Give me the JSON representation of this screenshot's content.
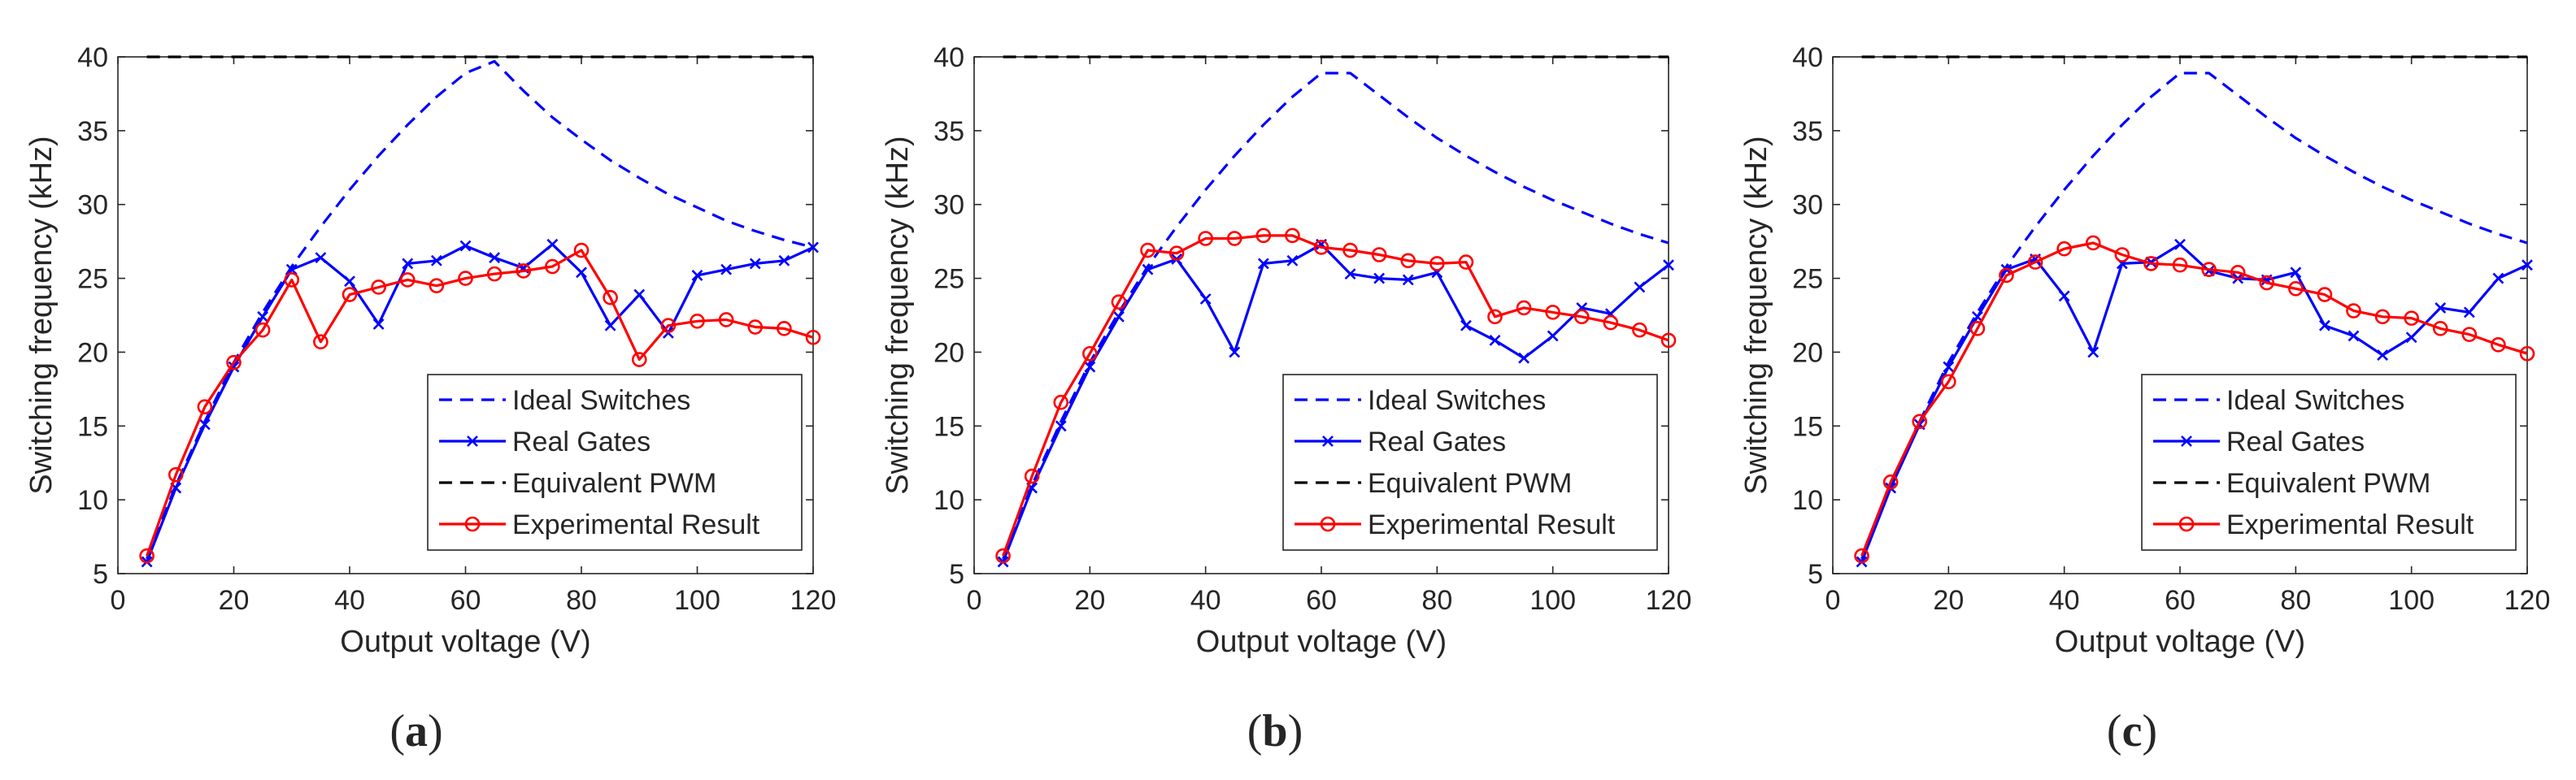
{
  "chart_data": [
    {
      "type": "line",
      "panel_label": "a",
      "xlabel": "Output voltage (V)",
      "ylabel": "Switching frequency (kHz)",
      "xlim": [
        0,
        120
      ],
      "ylim": [
        5,
        40
      ],
      "xticks": [
        0,
        20,
        40,
        60,
        80,
        100,
        120
      ],
      "yticks": [
        5,
        10,
        15,
        20,
        25,
        30,
        35,
        40
      ],
      "legend_position": "bottom-right",
      "series": [
        {
          "name": "Ideal Switches",
          "color": "#0000ff",
          "style": "dashed",
          "marker": "none",
          "x": [
            5,
            10,
            15,
            20,
            25,
            30,
            35,
            40,
            45,
            50,
            55,
            60,
            65,
            70,
            75,
            80,
            85,
            90,
            95,
            100,
            105,
            110,
            115,
            120
          ],
          "y": [
            6,
            11,
            15.3,
            19.3,
            22.7,
            25.8,
            28.5,
            31,
            33.3,
            35.4,
            37.3,
            38.9,
            39.7,
            37.7,
            35.9,
            34.4,
            33,
            31.8,
            30.7,
            29.8,
            28.9,
            28.2,
            27.6,
            27.1
          ]
        },
        {
          "name": "Real Gates",
          "color": "#0000ff",
          "style": "solid",
          "marker": "x",
          "x": [
            5,
            10,
            15,
            20,
            25,
            30,
            35,
            40,
            45,
            50,
            55,
            60,
            65,
            70,
            75,
            80,
            85,
            90,
            95,
            100,
            105,
            110,
            115,
            120
          ],
          "y": [
            5.8,
            10.8,
            15.1,
            19,
            22.4,
            25.6,
            26.4,
            24.8,
            21.9,
            26,
            26.2,
            27.2,
            26.4,
            25.7,
            27.3,
            25.4,
            21.8,
            23.9,
            21.3,
            25.2,
            25.6,
            26,
            26.2,
            27.1
          ]
        },
        {
          "name": "Equivalent PWM",
          "color": "#000000",
          "style": "dashed",
          "marker": "none",
          "x": [
            5,
            120
          ],
          "y": [
            40,
            40
          ]
        },
        {
          "name": "Experimental Result",
          "color": "#ff0000",
          "style": "solid",
          "marker": "o",
          "x": [
            5,
            10,
            15,
            20,
            25,
            30,
            35,
            40,
            45,
            50,
            55,
            60,
            65,
            70,
            75,
            80,
            85,
            90,
            95,
            100,
            105,
            110,
            115,
            120
          ],
          "y": [
            6.2,
            11.7,
            16.3,
            19.3,
            21.5,
            24.9,
            20.7,
            23.9,
            24.4,
            24.9,
            24.5,
            25,
            25.3,
            25.5,
            25.8,
            26.9,
            23.7,
            19.5,
            21.8,
            22.1,
            22.2,
            21.7,
            21.6,
            21
          ]
        }
      ]
    },
    {
      "type": "line",
      "panel_label": "b",
      "xlabel": "Output voltage (V)",
      "ylabel": "Switching frequency (kHz)",
      "xlim": [
        0,
        120
      ],
      "ylim": [
        5,
        40
      ],
      "xticks": [
        0,
        20,
        40,
        60,
        80,
        100,
        120
      ],
      "yticks": [
        5,
        10,
        15,
        20,
        25,
        30,
        35,
        40
      ],
      "legend_position": "bottom-right",
      "series": [
        {
          "name": "Ideal Switches",
          "color": "#0000ff",
          "style": "dashed",
          "marker": "none",
          "x": [
            5,
            10,
            15,
            20,
            25,
            30,
            35,
            40,
            45,
            50,
            55,
            60,
            65,
            70,
            75,
            80,
            85,
            90,
            95,
            100,
            105,
            110,
            115,
            120
          ],
          "y": [
            6,
            11,
            15.3,
            19.3,
            22.7,
            25.8,
            28.5,
            31,
            33.3,
            35.4,
            37.3,
            38.9,
            38.9,
            37.4,
            35.9,
            34.5,
            33.3,
            32.2,
            31.2,
            30.3,
            29.5,
            28.7,
            28,
            27.4
          ]
        },
        {
          "name": "Real Gates",
          "color": "#0000ff",
          "style": "solid",
          "marker": "x",
          "x": [
            5,
            10,
            15,
            20,
            25,
            30,
            35,
            40,
            45,
            50,
            55,
            60,
            65,
            70,
            75,
            80,
            85,
            90,
            95,
            100,
            105,
            110,
            115,
            120
          ],
          "y": [
            5.8,
            10.8,
            15,
            19,
            22.4,
            25.6,
            26.3,
            23.6,
            20,
            26,
            26.2,
            27.3,
            25.3,
            25,
            24.9,
            25.4,
            21.8,
            20.8,
            19.6,
            21.1,
            23,
            22.6,
            24.4,
            25.9
          ]
        },
        {
          "name": "Equivalent PWM",
          "color": "#000000",
          "style": "dashed",
          "marker": "none",
          "x": [
            5,
            120
          ],
          "y": [
            40,
            40
          ]
        },
        {
          "name": "Experimental Result",
          "color": "#ff0000",
          "style": "solid",
          "marker": "o",
          "x": [
            5,
            10,
            15,
            20,
            25,
            30,
            35,
            40,
            45,
            50,
            55,
            60,
            65,
            70,
            75,
            80,
            85,
            90,
            95,
            100,
            105,
            110,
            115,
            120
          ],
          "y": [
            6.2,
            11.6,
            16.6,
            19.9,
            23.4,
            26.9,
            26.7,
            27.7,
            27.7,
            27.9,
            27.9,
            27.1,
            26.9,
            26.6,
            26.2,
            26,
            26.1,
            22.4,
            23,
            22.7,
            22.4,
            22,
            21.5,
            20.8
          ]
        }
      ]
    },
    {
      "type": "line",
      "panel_label": "c",
      "xlabel": "Output voltage (V)",
      "ylabel": "Switching frequency (kHz)",
      "xlim": [
        0,
        120
      ],
      "ylim": [
        5,
        40
      ],
      "xticks": [
        0,
        20,
        40,
        60,
        80,
        100,
        120
      ],
      "yticks": [
        5,
        10,
        15,
        20,
        25,
        30,
        35,
        40
      ],
      "legend_position": "bottom-right",
      "series": [
        {
          "name": "Ideal Switches",
          "color": "#0000ff",
          "style": "dashed",
          "marker": "none",
          "x": [
            5,
            10,
            15,
            20,
            25,
            30,
            35,
            40,
            45,
            50,
            55,
            60,
            65,
            70,
            75,
            80,
            85,
            90,
            95,
            100,
            105,
            110,
            115,
            120
          ],
          "y": [
            6,
            11,
            15.3,
            19.3,
            22.7,
            25.8,
            28.5,
            31,
            33.3,
            35.4,
            37.3,
            38.9,
            38.9,
            37.4,
            35.9,
            34.5,
            33.3,
            32.2,
            31.2,
            30.3,
            29.5,
            28.7,
            28,
            27.4
          ]
        },
        {
          "name": "Real Gates",
          "color": "#0000ff",
          "style": "solid",
          "marker": "x",
          "x": [
            5,
            10,
            15,
            20,
            25,
            30,
            35,
            40,
            45,
            50,
            55,
            60,
            65,
            70,
            75,
            80,
            85,
            90,
            95,
            100,
            105,
            110,
            115,
            120
          ],
          "y": [
            5.8,
            10.8,
            15.1,
            19,
            22.4,
            25.6,
            26.3,
            23.8,
            20,
            26,
            26.1,
            27.3,
            25.5,
            25,
            24.9,
            25.4,
            21.8,
            21.1,
            19.8,
            21,
            23,
            22.7,
            25,
            25.9
          ]
        },
        {
          "name": "Equivalent PWM",
          "color": "#000000",
          "style": "dashed",
          "marker": "none",
          "x": [
            5,
            120
          ],
          "y": [
            40,
            40
          ]
        },
        {
          "name": "Experimental Result",
          "color": "#ff0000",
          "style": "solid",
          "marker": "o",
          "x": [
            5,
            10,
            15,
            20,
            25,
            30,
            35,
            40,
            45,
            50,
            55,
            60,
            65,
            70,
            75,
            80,
            85,
            90,
            95,
            100,
            105,
            110,
            115,
            120
          ],
          "y": [
            6.2,
            11.2,
            15.3,
            18,
            21.6,
            25.2,
            26.1,
            27,
            27.4,
            26.6,
            26,
            25.9,
            25.6,
            25.4,
            24.7,
            24.3,
            23.9,
            22.8,
            22.4,
            22.3,
            21.6,
            21.2,
            20.5,
            19.9
          ]
        }
      ]
    }
  ]
}
